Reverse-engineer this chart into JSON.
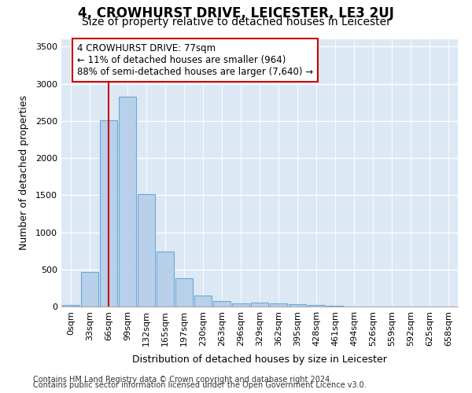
{
  "title": "4, CROWHURST DRIVE, LEICESTER, LE3 2UJ",
  "subtitle": "Size of property relative to detached houses in Leicester",
  "xlabel": "Distribution of detached houses by size in Leicester",
  "ylabel": "Number of detached properties",
  "footer_line1": "Contains HM Land Registry data © Crown copyright and database right 2024.",
  "footer_line2": "Contains public sector information licensed under the Open Government Licence v3.0.",
  "annotation_line1": "4 CROWHURST DRIVE: 77sqm",
  "annotation_line2": "← 11% of detached houses are smaller (964)",
  "annotation_line3": "88% of semi-detached houses are larger (7,640) →",
  "bar_labels": [
    "0sqm",
    "33sqm",
    "66sqm",
    "99sqm",
    "132sqm",
    "165sqm",
    "197sqm",
    "230sqm",
    "263sqm",
    "296sqm",
    "329sqm",
    "362sqm",
    "395sqm",
    "428sqm",
    "461sqm",
    "494sqm",
    "526sqm",
    "559sqm",
    "592sqm",
    "625sqm",
    "658sqm"
  ],
  "bar_values": [
    25,
    470,
    2510,
    2830,
    1510,
    740,
    380,
    145,
    75,
    45,
    50,
    45,
    30,
    18,
    8,
    5,
    3,
    2,
    1,
    1,
    1
  ],
  "bar_color": "#b8d0ea",
  "bar_edge_color": "#6aaad4",
  "ylim": [
    0,
    3600
  ],
  "yticks": [
    0,
    500,
    1000,
    1500,
    2000,
    2500,
    3000,
    3500
  ],
  "vline_x": 2,
  "vline_color": "#cc0000",
  "fig_bg_color": "#ffffff",
  "plot_bg_color": "#dde8f5",
  "grid_color": "#ffffff",
  "annotation_box_facecolor": "#ffffff",
  "annotation_box_edgecolor": "#cc0000",
  "title_fontsize": 12,
  "subtitle_fontsize": 10,
  "ylabel_fontsize": 9,
  "xlabel_fontsize": 9,
  "tick_fontsize": 8,
  "annotation_fontsize": 8.5,
  "footer_fontsize": 7
}
